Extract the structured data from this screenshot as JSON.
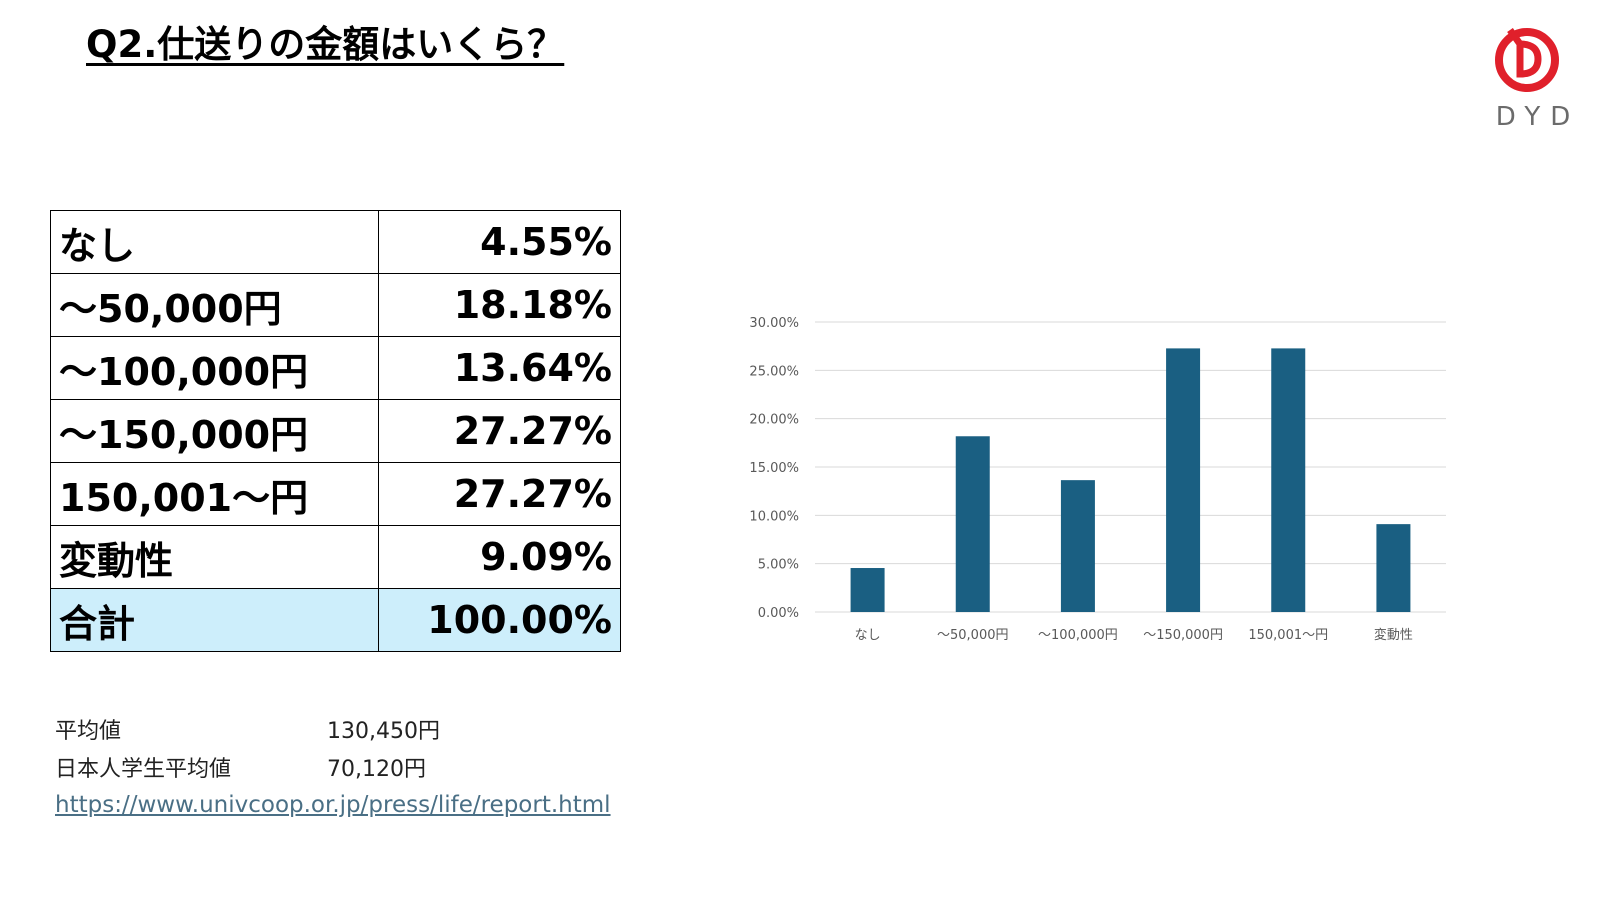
{
  "title": "Q2.仕送りの金額はいくら？",
  "logo": {
    "text": "DYD",
    "color": "#e0202b"
  },
  "table": {
    "rows": [
      {
        "label": "なし",
        "value": "4.55%"
      },
      {
        "label": "～50,000円",
        "value": "18.18%"
      },
      {
        "label": "～100,000円",
        "value": "13.64%"
      },
      {
        "label": "～150,000円",
        "value": "27.27%"
      },
      {
        "label": "150,001～円",
        "value": "27.27%"
      },
      {
        "label": "変動性",
        "value": "9.09%"
      }
    ],
    "total": {
      "label": "合計",
      "value": "100.00%"
    },
    "total_color": "#cdeefb"
  },
  "stats": {
    "average_label": "平均値",
    "average_value": "130,450円",
    "japanese_average_label": "日本人学生平均値",
    "japanese_average_value": "70,120円",
    "source_link": "https://www.univcoop.or.jp/press/life/report.html"
  },
  "chart_data": {
    "type": "bar",
    "categories": [
      "なし",
      "～50,000円",
      "～100,000円",
      "～150,000円",
      "150,001～円",
      "変動性"
    ],
    "values": [
      4.55,
      18.18,
      13.64,
      27.27,
      27.27,
      9.09
    ],
    "ylim": [
      0,
      30
    ],
    "yticks": [
      "0.00%",
      "5.00%",
      "10.00%",
      "15.00%",
      "20.00%",
      "25.00%",
      "30.00%"
    ],
    "grid": true,
    "bar_color": "#1a5f82",
    "grid_color": "#d9d9d9"
  }
}
